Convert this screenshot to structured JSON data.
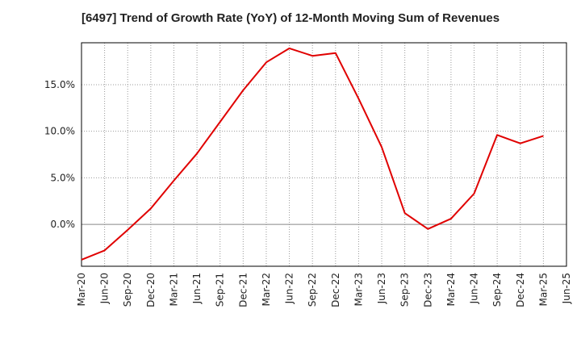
{
  "chart_data": {
    "type": "line",
    "title": "[6497]  Trend of Growth Rate (YoY) of 12-Month Moving Sum of Revenues",
    "xlabel": "",
    "ylabel": "",
    "x_tick_labels": [
      "Mar-20",
      "Jun-20",
      "Sep-20",
      "Dec-20",
      "Mar-21",
      "Jun-21",
      "Sep-21",
      "Dec-21",
      "Mar-22",
      "Jun-22",
      "Sep-22",
      "Dec-22",
      "Mar-23",
      "Jun-23",
      "Sep-23",
      "Dec-23",
      "Mar-24",
      "Jun-24",
      "Sep-24",
      "Dec-24",
      "Mar-25",
      "Jun-25"
    ],
    "y_ticks": [
      0,
      5,
      10,
      15
    ],
    "y_tick_labels": [
      "0.0%",
      "5.0%",
      "10.0%",
      "15.0%"
    ],
    "ylim": [
      -4.5,
      19.5
    ],
    "grid": true,
    "series": [
      {
        "color": "#e00000",
        "x": [
          "Mar-20",
          "Jun-20",
          "Sep-20",
          "Dec-20",
          "Mar-21",
          "Jun-21",
          "Sep-21",
          "Dec-21",
          "Mar-22",
          "Jun-22",
          "Sep-22",
          "Dec-22",
          "Mar-23",
          "Jun-23",
          "Sep-23",
          "Dec-23",
          "Mar-24",
          "Jun-24",
          "Sep-24",
          "Dec-24",
          "Mar-25"
        ],
        "values": [
          -3.8,
          -2.8,
          -0.6,
          1.7,
          4.7,
          7.6,
          11.0,
          14.4,
          17.4,
          18.9,
          18.1,
          18.4,
          13.5,
          8.3,
          1.2,
          -0.5,
          0.6,
          3.3,
          9.6,
          8.7,
          9.5
        ]
      }
    ]
  }
}
